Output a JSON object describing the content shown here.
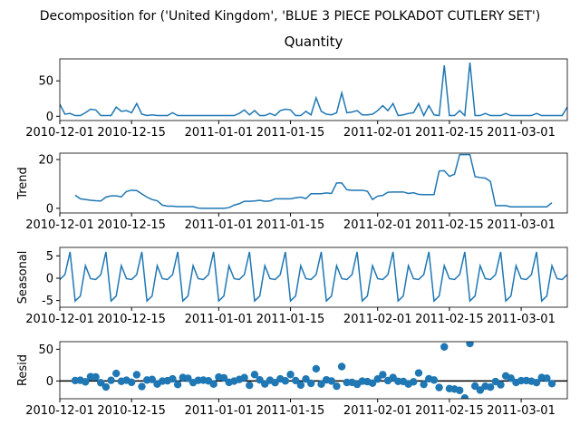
{
  "title": "Decomposition for ('United Kingdom', 'BLUE 3 PIECE POLKADOT CUTLERY SET')",
  "x": [
    "2010-12-01",
    "2010-12-02",
    "2010-12-03",
    "2010-12-04",
    "2010-12-05",
    "2010-12-06",
    "2010-12-07",
    "2010-12-08",
    "2010-12-09",
    "2010-12-10",
    "2010-12-11",
    "2010-12-12",
    "2010-12-13",
    "2010-12-14",
    "2010-12-15",
    "2010-12-16",
    "2010-12-17",
    "2010-12-18",
    "2010-12-19",
    "2010-12-20",
    "2010-12-21",
    "2010-12-22",
    "2010-12-23",
    "2010-12-24",
    "2010-12-25",
    "2010-12-26",
    "2010-12-27",
    "2010-12-28",
    "2010-12-29",
    "2010-12-30",
    "2010-12-31",
    "2011-01-01",
    "2011-01-02",
    "2011-01-03",
    "2011-01-04",
    "2011-01-05",
    "2011-01-06",
    "2011-01-07",
    "2011-01-08",
    "2011-01-09",
    "2011-01-10",
    "2011-01-11",
    "2011-01-12",
    "2011-01-13",
    "2011-01-14",
    "2011-01-15",
    "2011-01-16",
    "2011-01-17",
    "2011-01-18",
    "2011-01-19",
    "2011-01-20",
    "2011-01-21",
    "2011-01-22",
    "2011-01-23",
    "2011-01-24",
    "2011-01-25",
    "2011-01-26",
    "2011-01-27",
    "2011-01-28",
    "2011-01-29",
    "2011-01-30",
    "2011-01-31",
    "2011-02-01",
    "2011-02-02",
    "2011-02-03",
    "2011-02-04",
    "2011-02-05",
    "2011-02-06",
    "2011-02-07",
    "2011-02-08",
    "2011-02-09",
    "2011-02-10",
    "2011-02-11",
    "2011-02-12",
    "2011-02-13",
    "2011-02-14",
    "2011-02-15",
    "2011-02-16",
    "2011-02-17",
    "2011-02-18",
    "2011-02-19",
    "2011-02-20",
    "2011-02-21",
    "2011-02-22",
    "2011-02-23",
    "2011-02-24",
    "2011-02-25",
    "2011-02-26",
    "2011-02-27",
    "2011-02-28",
    "2011-03-01",
    "2011-03-02",
    "2011-03-03",
    "2011-03-04",
    "2011-03-05",
    "2011-03-06",
    "2011-03-07",
    "2011-03-08",
    "2011-03-09",
    "2011-03-10"
  ],
  "xlim": [
    "2010-12-01",
    "2011-03-10"
  ],
  "xticks": [
    "2010-12-01",
    "2010-12-15",
    "2011-01-01",
    "2011-01-15",
    "2011-02-01",
    "2011-02-15",
    "2011-03-01"
  ],
  "chart_data": [
    {
      "type": "line",
      "title": "Quantity",
      "color": "#1f77b4",
      "ylim": [
        -6,
        81
      ],
      "yticks": [
        0,
        50
      ],
      "values": [
        17,
        3,
        4,
        1,
        1,
        5,
        10,
        9,
        1,
        1,
        1,
        13,
        7,
        8,
        5,
        18,
        3,
        1,
        2,
        1,
        1,
        1,
        5,
        1,
        1,
        1,
        1,
        1,
        1,
        1,
        1,
        1,
        1,
        1,
        1,
        4,
        9,
        2,
        8,
        1,
        1,
        4,
        1,
        8,
        10,
        9,
        1,
        1,
        7,
        2,
        26,
        7,
        3,
        2,
        5,
        33,
        5,
        6,
        8,
        2,
        2,
        3,
        8,
        15,
        8,
        18,
        1,
        2,
        4,
        5,
        18,
        1,
        15,
        2,
        1,
        72,
        1,
        1,
        8,
        1,
        76,
        1,
        1,
        4,
        1,
        1,
        1,
        4,
        1,
        1,
        1,
        1,
        1,
        4,
        1,
        1,
        1,
        1,
        1,
        13
      ]
    },
    {
      "type": "line",
      "ylabel": "Trend",
      "color": "#1f77b4",
      "ylim": [
        -1.9,
        22.6
      ],
      "yticks": [
        0,
        20
      ],
      "values": [
        null,
        null,
        null,
        5.4,
        3.9,
        3.6,
        3.3,
        3.1,
        3.0,
        4.6,
        5.1,
        5.1,
        4.7,
        6.9,
        7.4,
        7.3,
        5.9,
        4.6,
        3.6,
        3.1,
        1.3,
        0.9,
        0.9,
        0.7,
        0.7,
        0.7,
        0.7,
        0.1,
        0,
        0,
        0,
        0,
        0,
        0.3,
        1.3,
        1.9,
        2.9,
        2.9,
        3.0,
        3.3,
        2.9,
        3.0,
        3.9,
        3.9,
        3.9,
        3.9,
        4.3,
        4.6,
        4.0,
        6.0,
        6.0,
        6.0,
        6.3,
        6.1,
        10.4,
        10.4,
        7.6,
        7.4,
        7.4,
        7.4,
        7.0,
        3.6,
        5.0,
        5.3,
        6.6,
        6.7,
        6.7,
        6.7,
        6.1,
        6.4,
        5.7,
        5.6,
        5.6,
        5.6,
        15.3,
        15.4,
        13.1,
        14.0,
        22.0,
        22.0,
        22.0,
        13.0,
        12.6,
        12.4,
        11.0,
        1.1,
        1.1,
        1.1,
        0.6,
        0.6,
        0.6,
        0.6,
        0.6,
        0.6,
        0.6,
        0.6,
        2.3,
        null,
        null,
        null
      ]
    },
    {
      "type": "line",
      "ylabel": "Seasonal",
      "color": "#1f77b4",
      "ylim": [
        -6.5,
        6.9
      ],
      "yticks": [
        -5,
        0,
        5
      ],
      "values": [
        -0.3,
        0.8,
        5.9,
        -5.1,
        -4.0,
        2.8,
        -0.1,
        -0.3,
        0.8,
        5.9,
        -5.1,
        -4.0,
        2.8,
        -0.1,
        -0.3,
        0.8,
        5.9,
        -5.1,
        -4.0,
        2.8,
        -0.1,
        -0.3,
        0.8,
        5.9,
        -5.1,
        -4.0,
        2.8,
        -0.1,
        -0.3,
        0.8,
        5.9,
        -5.1,
        -4.0,
        2.8,
        -0.1,
        -0.3,
        0.8,
        5.9,
        -5.1,
        -4.0,
        2.8,
        -0.1,
        -0.3,
        0.8,
        5.9,
        -5.1,
        -4.0,
        2.8,
        -0.1,
        -0.3,
        0.8,
        5.9,
        -5.1,
        -4.0,
        2.8,
        -0.1,
        -0.3,
        0.8,
        5.9,
        -5.1,
        -4.0,
        2.8,
        -0.1,
        -0.3,
        0.8,
        5.9,
        -5.1,
        -4.0,
        2.8,
        -0.1,
        -0.3,
        0.8,
        5.9,
        -5.1,
        -4.0,
        2.8,
        -0.1,
        -0.3,
        0.8,
        5.9,
        -5.1,
        -4.0,
        2.8,
        -0.1,
        -0.3,
        0.8,
        5.9,
        -5.1,
        -4.0,
        2.8,
        -0.1,
        -0.3,
        0.8,
        5.9,
        -5.1,
        -4.0,
        2.8,
        -0.1,
        -0.3,
        0.8
      ]
    },
    {
      "type": "scatter",
      "ylabel": "Resid",
      "color": "#1f77b4",
      "ylim": [
        -28,
        62
      ],
      "yticks": [
        0,
        50
      ],
      "zero_line": true,
      "values": [
        null,
        null,
        null,
        0.7,
        1.1,
        -1.4,
        6.8,
        6.3,
        -2.8,
        -9.5,
        1.0,
        11.9,
        -0.5,
        1.2,
        -2.1,
        9.9,
        -8.8,
        1.5,
        2.4,
        -4.9,
        -0.2,
        0.4,
        3.3,
        -5.6,
        5.4,
        4.3,
        -2.5,
        1.0,
        1.3,
        0.2,
        -4.9,
        6.1,
        5.0,
        -2.1,
        -0.2,
        2.4,
        5.3,
        -6.8,
        10.1,
        1.7,
        -4.7,
        1.1,
        -2.6,
        3.3,
        0.2,
        10.2,
        0.7,
        -6.4,
        3.1,
        -3.7,
        19.2,
        -4.9,
        1.8,
        -0.1,
        -8.2,
        22.7,
        -2.3,
        -2.2,
        -5.3,
        -0.3,
        -1.0,
        -3.4,
        3.1,
        10.0,
        0.6,
        5.4,
        -0.6,
        -0.7,
        -4.9,
        -1.3,
        12.6,
        -5.4,
        3.5,
        1.5,
        -10.3,
        53.8,
        -12.0,
        -12.7,
        -14.8,
        -26.9,
        59.1,
        -8.0,
        -14.4,
        -8.3,
        -9.7,
        -0.9,
        -6.0,
        8.0,
        4.4,
        -2.4,
        0.5,
        0.7,
        -0.4,
        -2.5,
        5.5,
        4.4,
        -4.1,
        null,
        null,
        null
      ]
    }
  ]
}
